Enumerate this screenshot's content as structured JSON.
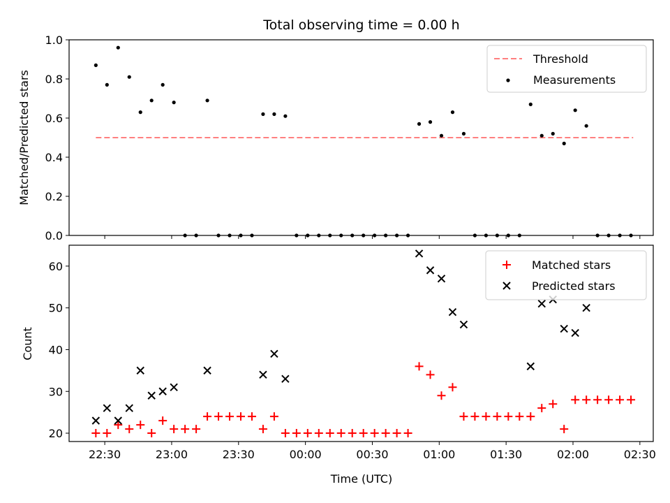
{
  "chart_data": [
    {
      "type": "scatter",
      "title": "Total observing time = 0.00 h",
      "xlabel": "",
      "ylabel": "Matched/Predicted stars",
      "ylim": [
        0,
        1.0
      ],
      "xlim": [
        "22:14",
        "02:36"
      ],
      "yticks": [
        "0.0",
        "0.2",
        "0.4",
        "0.6",
        "0.8",
        "1.0"
      ],
      "legend": {
        "placement": "top-right",
        "entries": [
          "Threshold",
          "Measurements"
        ]
      },
      "threshold": {
        "name": "Threshold",
        "value": 0.5,
        "color": "#ff7f7f",
        "style": "dashed",
        "x_range": [
          "22:26",
          "02:27"
        ]
      },
      "series": [
        {
          "name": "Measurements",
          "color": "#000000",
          "marker": "dot",
          "x": [
            "22:26",
            "22:31",
            "22:36",
            "22:41",
            "22:46",
            "22:51",
            "22:56",
            "23:01",
            "23:06",
            "23:11",
            "23:16",
            "23:21",
            "23:26",
            "23:31",
            "23:36",
            "23:41",
            "23:46",
            "23:51",
            "23:56",
            "00:01",
            "00:06",
            "00:11",
            "00:16",
            "00:21",
            "00:26",
            "00:31",
            "00:36",
            "00:41",
            "00:46",
            "00:51",
            "00:56",
            "01:01",
            "01:06",
            "01:11",
            "01:16",
            "01:21",
            "01:26",
            "01:31",
            "01:36",
            "01:41",
            "01:46",
            "01:51",
            "01:56",
            "02:01",
            "02:06",
            "02:11",
            "02:16",
            "02:21",
            "02:26"
          ],
          "y": [
            0.87,
            0.77,
            0.96,
            0.81,
            0.63,
            0.69,
            0.77,
            0.68,
            0.0,
            0.0,
            0.69,
            0.0,
            0.0,
            0.0,
            0.0,
            0.62,
            0.62,
            0.61,
            0.0,
            0.0,
            0.0,
            0.0,
            0.0,
            0.0,
            0.0,
            0.0,
            0.0,
            0.0,
            0.0,
            0.57,
            0.58,
            0.51,
            0.63,
            0.52,
            0.0,
            0.0,
            0.0,
            0.0,
            0.0,
            0.67,
            0.51,
            0.52,
            0.47,
            0.64,
            0.56,
            0.0,
            0.0,
            0.0,
            0.0
          ]
        }
      ]
    },
    {
      "type": "scatter",
      "title": "",
      "xlabel": "Time (UTC)",
      "ylabel": "Count",
      "ylim": [
        18,
        65
      ],
      "xlim": [
        "22:14",
        "02:36"
      ],
      "yticks": [
        "20",
        "30",
        "40",
        "50",
        "60"
      ],
      "xticks": [
        "22:30",
        "23:00",
        "23:30",
        "00:00",
        "00:30",
        "01:00",
        "01:30",
        "02:00",
        "02:30"
      ],
      "legend": {
        "placement": "top-right",
        "entries": [
          "Matched stars",
          "Predicted stars"
        ]
      },
      "series": [
        {
          "name": "Matched stars",
          "color": "#ff0000",
          "marker": "plus",
          "x": [
            "22:26",
            "22:31",
            "22:36",
            "22:41",
            "22:46",
            "22:51",
            "22:56",
            "23:01",
            "23:06",
            "23:11",
            "23:16",
            "23:21",
            "23:26",
            "23:31",
            "23:36",
            "23:41",
            "23:46",
            "23:51",
            "23:56",
            "00:01",
            "00:06",
            "00:11",
            "00:16",
            "00:21",
            "00:26",
            "00:31",
            "00:36",
            "00:41",
            "00:46",
            "00:51",
            "00:56",
            "01:01",
            "01:06",
            "01:11",
            "01:16",
            "01:21",
            "01:26",
            "01:31",
            "01:36",
            "01:41",
            "01:46",
            "01:51",
            "01:56",
            "02:01",
            "02:06",
            "02:11",
            "02:16",
            "02:21",
            "02:26"
          ],
          "y": [
            20,
            20,
            22,
            21,
            22,
            20,
            23,
            21,
            21,
            21,
            24,
            24,
            24,
            24,
            24,
            21,
            24,
            20,
            20,
            20,
            20,
            20,
            20,
            20,
            20,
            20,
            20,
            20,
            20,
            36,
            34,
            29,
            31,
            24,
            24,
            24,
            24,
            24,
            24,
            24,
            26,
            27,
            21,
            28,
            28,
            28,
            28,
            28,
            28
          ]
        },
        {
          "name": "Predicted stars",
          "color": "#000000",
          "marker": "x",
          "x": [
            "22:26",
            "22:31",
            "22:36",
            "22:41",
            "22:46",
            "22:51",
            "22:56",
            "23:01",
            "23:16",
            "23:41",
            "23:46",
            "23:51",
            "00:51",
            "00:56",
            "01:01",
            "01:06",
            "01:11",
            "01:41",
            "01:46",
            "01:51",
            "01:56",
            "02:01",
            "02:06"
          ],
          "y": [
            23,
            26,
            23,
            26,
            35,
            29,
            30,
            31,
            35,
            34,
            39,
            33,
            63,
            59,
            57,
            49,
            46,
            36,
            51,
            52,
            45,
            44,
            50
          ]
        }
      ]
    }
  ]
}
